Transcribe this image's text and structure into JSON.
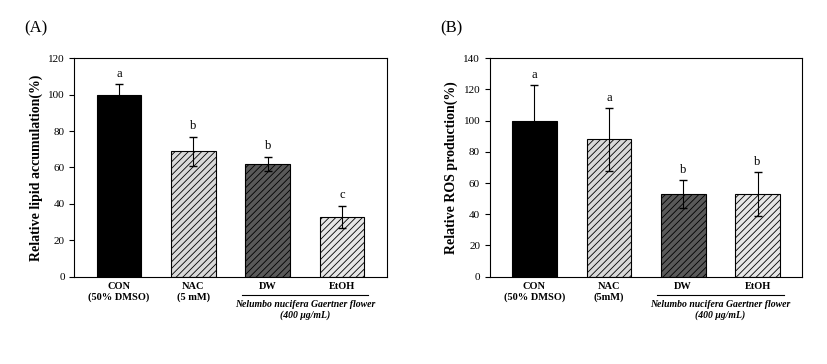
{
  "chart_data": [
    {
      "type": "bar",
      "title": "(A)",
      "y_label": "Relative lipid accumulation(%)",
      "categories": [
        "CON\n(50% DMSO)",
        "NAC\n(5 mM)",
        "DW",
        "EtOH"
      ],
      "values": [
        100,
        69,
        62,
        33
      ],
      "errors": [
        6,
        8,
        4,
        6
      ],
      "significance": [
        "a",
        "b",
        "b",
        "c"
      ],
      "group_label": "Nelumbo nucifera Gaertner flower\n(400 μg/mL)",
      "colors": [
        "#000000",
        "#d9d9d9",
        "#595959",
        "#e6e6e6"
      ],
      "ylim": [
        0,
        120
      ],
      "yticks": [
        0,
        20,
        40,
        60,
        80,
        100,
        120
      ],
      "grid": false
    },
    {
      "type": "bar",
      "title": "(B)",
      "y_label": "Relative ROS production(%)",
      "categories": [
        "CON\n(50% DMSO)",
        "NAC\n(5mM)",
        "DW",
        "EtOH"
      ],
      "values": [
        100,
        88,
        53,
        53
      ],
      "errors": [
        23,
        20,
        9,
        14
      ],
      "significance": [
        "a",
        "a",
        "b",
        "b"
      ],
      "group_label": "Nelumbo nucifera Gaertner flower\n(400 μg/mL)",
      "colors": [
        "#000000",
        "#d9d9d9",
        "#595959",
        "#e6e6e6"
      ],
      "ylim": [
        0,
        140
      ],
      "yticks": [
        0,
        20,
        40,
        60,
        80,
        100,
        120,
        140
      ],
      "grid": false
    }
  ]
}
